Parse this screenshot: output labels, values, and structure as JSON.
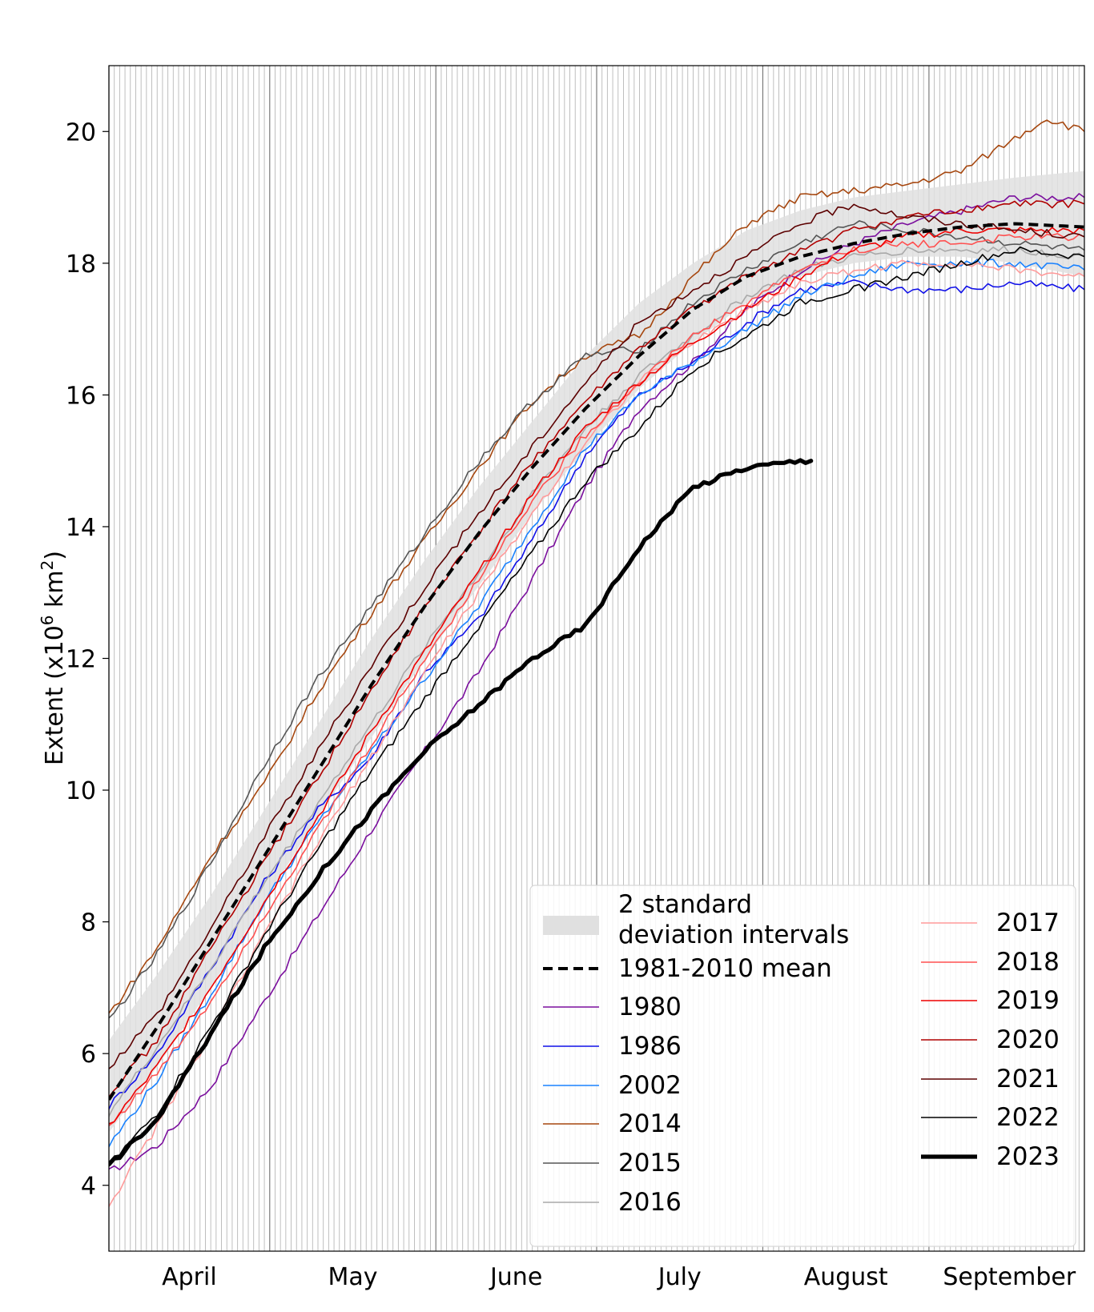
{
  "chart_data": {
    "type": "line",
    "title": "",
    "xlabel": "",
    "ylabel": "Extent (x10",
    "ylabel_sup": "6",
    "ylabel_mid": " km",
    "ylabel_sup2": "2",
    "ylabel_end": ")",
    "x_unit": "day of year",
    "xlim": [
      91,
      273
    ],
    "ylim": [
      3.0,
      21.0
    ],
    "grid": "vertical daily lines",
    "legend_position": "bottom-right",
    "month_ticks": [
      {
        "label": "April",
        "start": 91,
        "end": 121
      },
      {
        "label": "May",
        "start": 121,
        "end": 152
      },
      {
        "label": "June",
        "start": 152,
        "end": 182
      },
      {
        "label": "July",
        "start": 182,
        "end": 213
      },
      {
        "label": "August",
        "start": 213,
        "end": 244
      },
      {
        "label": "September",
        "start": 244,
        "end": 274
      }
    ],
    "y_ticks": [
      4,
      6,
      8,
      10,
      12,
      14,
      16,
      18,
      20
    ],
    "band": {
      "name": "2 standard deviation intervals",
      "name_line1": "2 standard",
      "name_line2": "deviation intervals",
      "color": "#e0e0e0",
      "x": [
        91,
        100,
        110,
        120,
        130,
        140,
        150,
        160,
        170,
        180,
        190,
        200,
        210,
        220,
        230,
        240,
        250,
        260,
        273
      ],
      "lower": [
        4.8,
        5.8,
        7.0,
        8.3,
        9.6,
        10.8,
        12.0,
        13.1,
        14.2,
        15.2,
        16.1,
        16.8,
        17.4,
        17.8,
        18.0,
        18.1,
        18.1,
        18.0,
        17.8
      ],
      "upper": [
        6.2,
        7.2,
        8.4,
        9.7,
        11.0,
        12.3,
        13.5,
        14.6,
        15.6,
        16.6,
        17.4,
        18.0,
        18.5,
        18.8,
        19.0,
        19.1,
        19.2,
        19.3,
        19.4
      ]
    },
    "mean": {
      "name": "1981-2010 mean",
      "color": "#000000",
      "x": [
        91,
        100,
        110,
        120,
        130,
        140,
        150,
        160,
        170,
        180,
        190,
        200,
        210,
        220,
        230,
        240,
        250,
        260,
        273
      ],
      "y": [
        5.3,
        6.4,
        7.7,
        9.0,
        10.3,
        11.6,
        12.8,
        13.9,
        14.9,
        15.8,
        16.6,
        17.3,
        17.8,
        18.1,
        18.3,
        18.45,
        18.55,
        18.6,
        18.55
      ]
    },
    "series": [
      {
        "name": "1980",
        "color": "#7b0f9e",
        "width": 1.6,
        "x": [
          91,
          100,
          110,
          120,
          130,
          140,
          150,
          160,
          170,
          180,
          190,
          200,
          210,
          220,
          230,
          240,
          250,
          260,
          273
        ],
        "y": [
          4.2,
          4.6,
          5.5,
          6.8,
          8.1,
          9.4,
          10.6,
          11.8,
          13.2,
          14.6,
          15.8,
          16.5,
          17.3,
          17.9,
          18.3,
          18.6,
          18.8,
          19.0,
          19.0
        ]
      },
      {
        "name": "1986",
        "color": "#1010e8",
        "width": 1.6,
        "x": [
          91,
          100,
          110,
          120,
          130,
          140,
          150,
          160,
          170,
          180,
          190,
          200,
          210,
          220,
          230,
          240,
          250,
          260,
          273
        ],
        "y": [
          5.2,
          6.0,
          7.3,
          8.6,
          9.7,
          10.5,
          11.8,
          12.6,
          13.8,
          15.1,
          16.0,
          16.5,
          17.1,
          17.6,
          17.7,
          17.6,
          17.6,
          17.7,
          17.6
        ]
      },
      {
        "name": "2002",
        "color": "#1a82ff",
        "width": 1.6,
        "x": [
          91,
          100,
          110,
          120,
          130,
          140,
          150,
          160,
          170,
          180,
          190,
          200,
          210,
          220,
          230,
          240,
          250,
          260,
          273
        ],
        "y": [
          4.6,
          5.6,
          6.9,
          8.3,
          9.5,
          10.6,
          11.7,
          12.8,
          14.0,
          15.2,
          16.0,
          16.5,
          17.0,
          17.5,
          17.8,
          18.0,
          18.0,
          18.0,
          17.9
        ]
      },
      {
        "name": "2014",
        "color": "#a6470f",
        "width": 1.6,
        "x": [
          91,
          100,
          110,
          120,
          130,
          140,
          150,
          160,
          170,
          180,
          190,
          200,
          210,
          220,
          230,
          240,
          250,
          260,
          266,
          273
        ],
        "y": [
          6.6,
          7.6,
          9.0,
          10.1,
          11.5,
          12.7,
          13.8,
          14.9,
          15.9,
          16.6,
          16.9,
          17.8,
          18.6,
          19.0,
          19.1,
          19.2,
          19.4,
          19.9,
          20.2,
          20.0
        ]
      },
      {
        "name": "2015",
        "color": "#555555",
        "width": 1.6,
        "x": [
          91,
          100,
          110,
          120,
          130,
          140,
          150,
          160,
          170,
          180,
          190,
          200,
          210,
          220,
          230,
          240,
          250,
          260,
          273
        ],
        "y": [
          6.5,
          7.5,
          8.9,
          10.4,
          11.7,
          12.8,
          13.9,
          15.0,
          15.9,
          16.6,
          16.7,
          17.4,
          17.9,
          18.3,
          18.6,
          18.5,
          18.4,
          18.3,
          18.2
        ]
      },
      {
        "name": "2016",
        "color": "#a9a9a9",
        "width": 1.6,
        "x": [
          91,
          100,
          110,
          120,
          130,
          140,
          150,
          160,
          170,
          180,
          190,
          200,
          210,
          220,
          230,
          240,
          250,
          260,
          273
        ],
        "y": [
          5.1,
          6.1,
          7.3,
          8.6,
          9.8,
          11.0,
          12.2,
          13.3,
          14.5,
          15.5,
          16.3,
          16.9,
          17.5,
          17.9,
          18.1,
          18.2,
          18.2,
          18.2,
          18.1
        ]
      },
      {
        "name": "2017",
        "color": "#ff9a9a",
        "width": 1.6,
        "x": [
          91,
          100,
          110,
          120,
          130,
          140,
          150,
          160,
          170,
          180,
          190,
          200,
          210,
          220,
          230,
          240,
          250,
          260,
          273
        ],
        "y": [
          3.7,
          4.9,
          6.3,
          7.8,
          9.2,
          10.5,
          11.8,
          13.0,
          14.2,
          15.3,
          16.2,
          16.8,
          17.3,
          17.7,
          17.9,
          18.0,
          18.0,
          17.9,
          17.8
        ]
      },
      {
        "name": "2018",
        "color": "#ff5050",
        "width": 1.6,
        "x": [
          91,
          100,
          110,
          120,
          130,
          140,
          150,
          160,
          170,
          180,
          190,
          200,
          210,
          220,
          230,
          240,
          250,
          260,
          273
        ],
        "y": [
          4.9,
          5.7,
          6.8,
          8.1,
          9.4,
          10.7,
          12.0,
          13.2,
          14.4,
          15.4,
          16.2,
          16.9,
          17.4,
          17.9,
          18.2,
          18.3,
          18.3,
          18.4,
          18.4
        ]
      },
      {
        "name": "2019",
        "color": "#ee0000",
        "width": 1.6,
        "x": [
          91,
          100,
          110,
          120,
          130,
          140,
          150,
          160,
          170,
          180,
          190,
          200,
          210,
          220,
          230,
          240,
          250,
          260,
          273
        ],
        "y": [
          4.9,
          5.8,
          7.0,
          8.3,
          9.6,
          10.9,
          12.1,
          13.3,
          14.5,
          15.5,
          16.2,
          16.8,
          17.3,
          17.8,
          18.2,
          18.4,
          18.5,
          18.5,
          18.5
        ]
      },
      {
        "name": "2020",
        "color": "#b00000",
        "width": 1.6,
        "x": [
          91,
          100,
          110,
          120,
          130,
          140,
          150,
          160,
          170,
          180,
          190,
          200,
          210,
          220,
          230,
          240,
          250,
          260,
          273
        ],
        "y": [
          5.4,
          6.2,
          7.6,
          8.9,
          10.2,
          11.5,
          12.8,
          13.9,
          15.0,
          15.9,
          16.7,
          17.3,
          17.8,
          18.2,
          18.5,
          18.7,
          18.8,
          18.9,
          18.9
        ]
      },
      {
        "name": "2021",
        "color": "#5c0000",
        "width": 1.6,
        "x": [
          91,
          100,
          110,
          120,
          130,
          140,
          150,
          160,
          170,
          180,
          190,
          200,
          210,
          220,
          230,
          240,
          250,
          260,
          273
        ],
        "y": [
          5.8,
          6.6,
          7.9,
          9.3,
          10.6,
          11.9,
          13.1,
          14.2,
          15.2,
          16.2,
          17.1,
          17.6,
          18.1,
          18.6,
          18.9,
          18.7,
          18.6,
          18.5,
          18.4
        ]
      },
      {
        "name": "2022",
        "color": "#000000",
        "width": 1.6,
        "x": [
          91,
          100,
          110,
          120,
          130,
          140,
          150,
          160,
          170,
          180,
          190,
          200,
          210,
          220,
          230,
          240,
          250,
          260,
          273
        ],
        "y": [
          4.3,
          5.1,
          6.4,
          7.8,
          9.1,
          10.3,
          11.4,
          12.5,
          13.6,
          14.7,
          15.5,
          16.4,
          16.9,
          17.4,
          17.6,
          17.8,
          18.0,
          18.2,
          18.1
        ]
      },
      {
        "name": "2023",
        "color": "#000000",
        "width": 5.2,
        "x": [
          91,
          100,
          110,
          120,
          130,
          140,
          150,
          160,
          170,
          180,
          190,
          200,
          210,
          220,
          222
        ],
        "y": [
          4.3,
          5.0,
          6.3,
          7.6,
          8.7,
          9.7,
          10.6,
          11.3,
          12.0,
          12.5,
          13.7,
          14.6,
          14.9,
          15.0,
          15.0
        ]
      }
    ],
    "legend": {
      "left": [
        "band",
        "mean",
        "1980",
        "1986",
        "2002",
        "2014",
        "2015",
        "2016"
      ],
      "right": [
        "2017",
        "2018",
        "2019",
        "2020",
        "2021",
        "2022",
        "2023"
      ]
    }
  }
}
